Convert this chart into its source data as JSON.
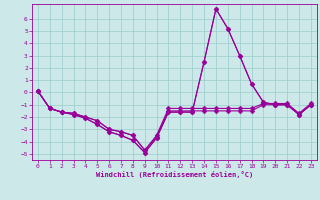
{
  "xlabel": "Windchill (Refroidissement éolien,°C)",
  "background_color": "#cce8e8",
  "grid_color": "#99cccc",
  "line_color": "#990099",
  "xlim": [
    -0.5,
    23.5
  ],
  "ylim": [
    -5.5,
    7.2
  ],
  "xticks": [
    0,
    1,
    2,
    3,
    4,
    5,
    6,
    7,
    8,
    9,
    10,
    11,
    12,
    13,
    14,
    15,
    16,
    17,
    18,
    19,
    20,
    21,
    22,
    23
  ],
  "yticks": [
    -5,
    -4,
    -3,
    -2,
    -1,
    0,
    1,
    2,
    3,
    4,
    5,
    6
  ],
  "hours": [
    0,
    1,
    2,
    3,
    4,
    5,
    6,
    7,
    8,
    9,
    10,
    11,
    12,
    13,
    14,
    15,
    16,
    17,
    18,
    19,
    20,
    21,
    22,
    23
  ],
  "line1": [
    0.1,
    -1.3,
    -1.6,
    -1.7,
    -2.0,
    -2.3,
    -3.0,
    -3.2,
    -3.5,
    -4.7,
    -3.6,
    -1.5,
    -1.5,
    -1.5,
    -1.5,
    -1.5,
    -1.5,
    -1.5,
    -1.5,
    -1.0,
    -1.0,
    -1.0,
    -1.8,
    -1.0
  ],
  "line2": [
    0.1,
    -1.3,
    -1.6,
    -1.7,
    -2.0,
    -2.3,
    -3.0,
    -3.2,
    -3.5,
    -4.7,
    -3.5,
    -1.3,
    -1.3,
    -1.3,
    -1.3,
    -1.3,
    -1.3,
    -1.3,
    -1.3,
    -0.9,
    -0.9,
    -0.9,
    -1.7,
    -0.9
  ],
  "line3": [
    0.1,
    -1.3,
    -1.6,
    -1.8,
    -2.1,
    -2.6,
    -3.2,
    -3.5,
    -3.9,
    -4.9,
    -3.7,
    -1.6,
    -1.6,
    -1.6,
    2.5,
    6.8,
    5.2,
    3.0,
    0.7,
    -0.8,
    -1.0,
    -1.0,
    -1.8,
    -1.0
  ],
  "line4": [
    0.1,
    -1.3,
    -1.6,
    -1.8,
    -2.1,
    -2.6,
    -3.2,
    -3.5,
    -3.9,
    -4.9,
    -3.7,
    -1.6,
    -1.6,
    -1.6,
    2.5,
    6.8,
    5.2,
    3.0,
    0.7,
    -0.8,
    -1.0,
    -1.0,
    -1.8,
    -1.0
  ],
  "marker_size": 2.5,
  "linewidth": 0.8
}
